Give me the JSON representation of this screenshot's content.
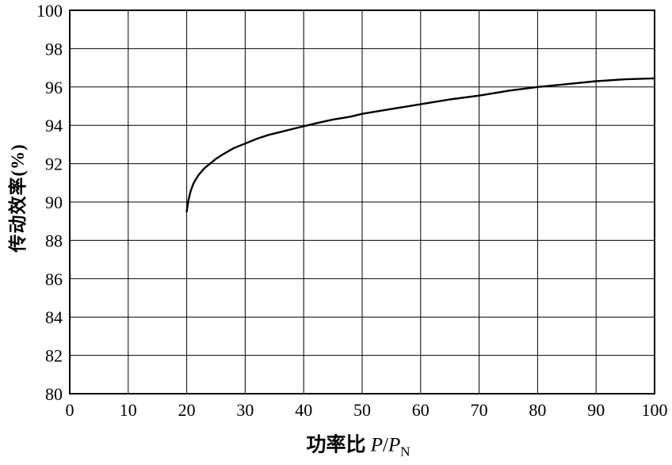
{
  "chart_data": {
    "type": "line",
    "title": "",
    "xlabel": "功率比 P/P_N",
    "xlabel_parts": {
      "prefix": "功率比 ",
      "p1": "P",
      "slash": "/",
      "p2": "P",
      "sub": "N"
    },
    "ylabel": "传动效率(%)",
    "xlim": [
      0,
      100
    ],
    "ylim": [
      80,
      100
    ],
    "xticks": [
      0,
      10,
      20,
      30,
      40,
      50,
      60,
      70,
      80,
      90,
      100
    ],
    "yticks": [
      80,
      82,
      84,
      86,
      88,
      90,
      92,
      94,
      96,
      98,
      100
    ],
    "grid": true,
    "legend": "none",
    "colors": {
      "curve": "#000000",
      "grid": "#000000",
      "border": "#000000",
      "background": "#ffffff"
    },
    "series": [
      {
        "name": "传动效率",
        "x": [
          20,
          20.3,
          20.7,
          21.2,
          22,
          23,
          24,
          25,
          26,
          28,
          30,
          32,
          34,
          36,
          38,
          40,
          42,
          45,
          48,
          50,
          55,
          60,
          65,
          70,
          75,
          80,
          85,
          90,
          95,
          100
        ],
        "y": [
          89.5,
          90.1,
          90.6,
          91.0,
          91.4,
          91.75,
          92.0,
          92.25,
          92.45,
          92.8,
          93.05,
          93.3,
          93.5,
          93.65,
          93.8,
          93.95,
          94.1,
          94.3,
          94.45,
          94.6,
          94.85,
          95.1,
          95.35,
          95.55,
          95.8,
          96.0,
          96.15,
          96.3,
          96.4,
          96.45
        ]
      }
    ]
  }
}
